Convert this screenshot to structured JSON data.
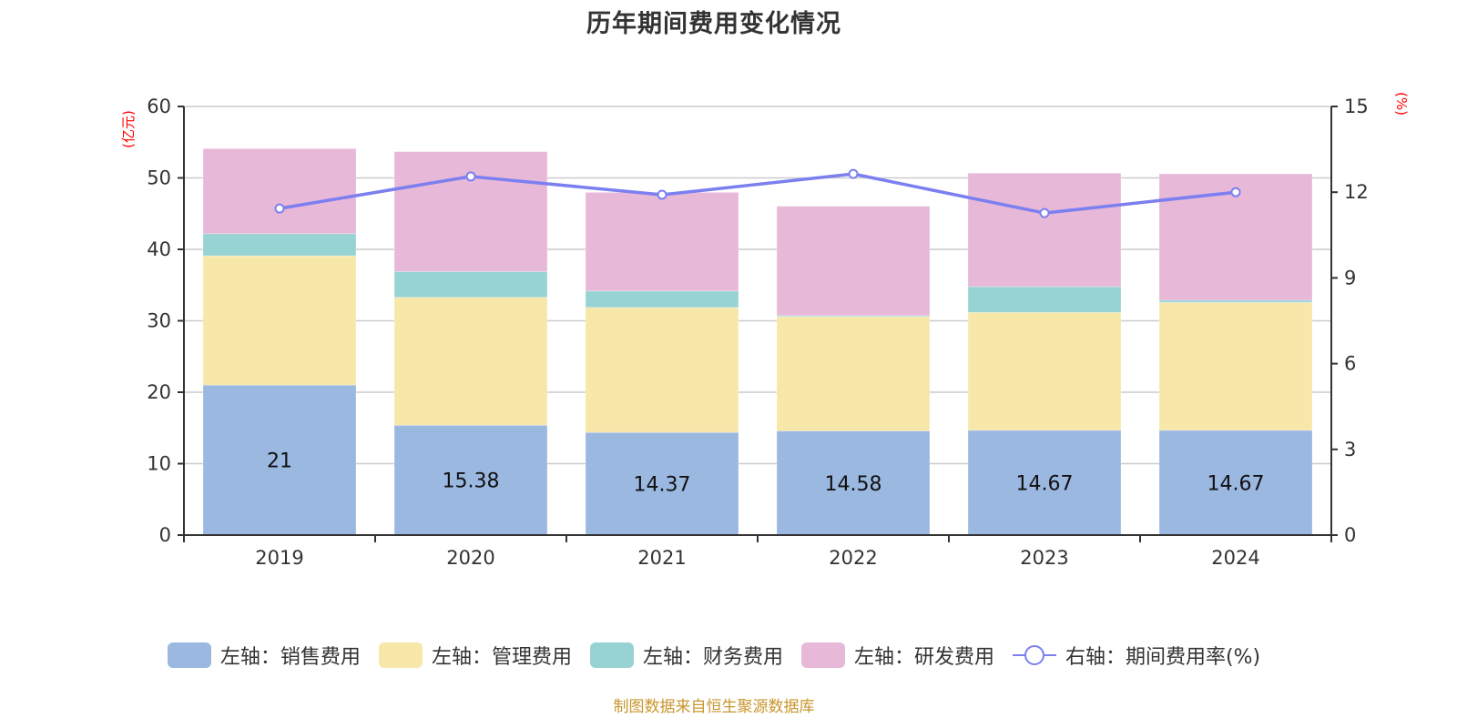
{
  "chart_data": {
    "type": "bar",
    "stacked": true,
    "title": "历年期间费用变化情况",
    "categories": [
      "2019",
      "2020",
      "2021",
      "2022",
      "2023",
      "2024"
    ],
    "left_axis": {
      "unit_label": "(亿元)",
      "ylim": [
        0,
        60
      ],
      "ticks": [
        0,
        10,
        20,
        30,
        40,
        50,
        60
      ]
    },
    "right_axis": {
      "unit_label": "(%)",
      "ylim": [
        0,
        15
      ],
      "ticks": [
        0,
        3,
        6,
        9,
        12,
        15
      ]
    },
    "grid": true,
    "series": [
      {
        "name": "左轴：销售费用",
        "axis": "left",
        "kind": "bar",
        "color": "#9bb8e1",
        "values": [
          21,
          15.38,
          14.37,
          14.58,
          14.67,
          14.67
        ],
        "show_labels": true
      },
      {
        "name": "左轴：管理费用",
        "axis": "left",
        "kind": "bar",
        "color": "#f7e7a9",
        "values": [
          18.1,
          17.9,
          17.5,
          16.0,
          16.5,
          17.9
        ],
        "show_labels": false
      },
      {
        "name": "左轴：财务费用",
        "axis": "left",
        "kind": "bar",
        "color": "#98d3d4",
        "values": [
          3.1,
          3.6,
          2.3,
          0.15,
          3.6,
          0.3
        ],
        "show_labels": false
      },
      {
        "name": "左轴：研发费用",
        "axis": "left",
        "kind": "bar",
        "color": "#e7b8d8",
        "values": [
          11.9,
          16.8,
          13.8,
          15.3,
          15.9,
          17.7
        ],
        "show_labels": false
      },
      {
        "name": "右轴：期间费用率(%)",
        "axis": "right",
        "kind": "line",
        "color": "#7b7ff0",
        "values": [
          11.43,
          12.55,
          11.91,
          12.64,
          11.27,
          12.0
        ],
        "show_labels": false
      }
    ],
    "legend_position": "bottom-center"
  },
  "source_note": "制图数据来自恒生聚源数据库"
}
